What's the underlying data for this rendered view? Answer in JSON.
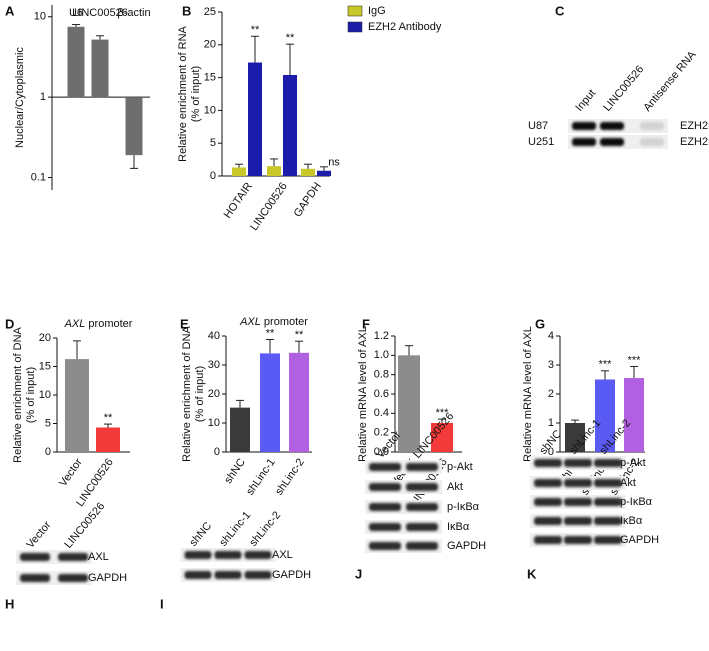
{
  "chart_data": [
    {
      "letter": "A",
      "type": "bar",
      "log": true,
      "ylabel": [
        "Nuclear/Cytoplasmic"
      ],
      "categories": [
        "U6",
        "LINC00526",
        "β-actin"
      ],
      "values": [
        7.5,
        5.2,
        0.19
      ],
      "errors": [
        0.5,
        0.6,
        0.06
      ],
      "colors": [
        "#6e6e6e",
        "#6e6e6e",
        "#6e6e6e"
      ],
      "ylim": [
        0.07,
        14
      ],
      "yticks": [
        0.1,
        1,
        10
      ],
      "labels_on_top": true
    },
    {
      "letter": "B",
      "type": "bar",
      "ylabel": [
        "Relative enrichment of RNA",
        "(% of input)"
      ],
      "categories": [
        "HOTAIR",
        "LINC00526",
        "GAPDH"
      ],
      "series": [
        {
          "name": "IgG",
          "color": "#c8c82a",
          "values": [
            1.3,
            1.5,
            1.1
          ],
          "errors": [
            0.5,
            1.1,
            0.7
          ]
        },
        {
          "name": "EZH2 Antibody",
          "color": "#1c1caa",
          "values": [
            17.3,
            15.4,
            0.8
          ],
          "errors": [
            4,
            4.7,
            0.6
          ]
        }
      ],
      "annotations": [
        "**",
        "**",
        "ns"
      ],
      "ylim": [
        0,
        25
      ],
      "yticks": [
        0,
        5,
        10,
        15,
        20,
        25
      ]
    },
    {
      "letter": "D",
      "type": "bar",
      "title": "AXL promoter",
      "ylabel": [
        "Relative enrichment of DNA",
        "(% of input)"
      ],
      "categories": [
        "Vector",
        "LINC00526"
      ],
      "values": [
        16.3,
        4.3
      ],
      "errors": [
        3.2,
        0.6
      ],
      "colors": [
        "#8c8c8c",
        "#f23a3a"
      ],
      "annotations": [
        null,
        "**"
      ],
      "ylim": [
        0,
        20
      ],
      "yticks": [
        0,
        5,
        10,
        15,
        20
      ]
    },
    {
      "letter": "E",
      "type": "bar",
      "title": "AXL promoter",
      "ylabel": [
        "Relative enrichment of DNA",
        "(% of input)"
      ],
      "categories": [
        "shNC",
        "shLinc-1",
        "shLinc-2"
      ],
      "values": [
        15.3,
        34,
        34.2
      ],
      "errors": [
        2.5,
        4.8,
        4
      ],
      "colors": [
        "#3a3a3a",
        "#5a5af5",
        "#b060e0"
      ],
      "annotations": [
        null,
        "**",
        "**"
      ],
      "ylim": [
        0,
        40
      ],
      "yticks": [
        0,
        10,
        20,
        30,
        40
      ]
    },
    {
      "letter": "F",
      "type": "bar",
      "ylabel": [
        "Relative mRNA level of AXL"
      ],
      "categories": [
        "Vector",
        "LINC00526"
      ],
      "values": [
        1.0,
        0.3
      ],
      "errors": [
        0.1,
        0.04
      ],
      "colors": [
        "#8c8c8c",
        "#f23a3a"
      ],
      "annotations": [
        null,
        "***"
      ],
      "ylim": [
        0,
        1.2
      ],
      "yticks": [
        {
          "value": 0,
          "label": "0.0"
        },
        0.2,
        0.4,
        0.6,
        0.8,
        {
          "value": 1,
          "label": "1.0"
        },
        1.2
      ]
    },
    {
      "letter": "G",
      "type": "bar",
      "ylabel": [
        "Relative mRNA level of AXL"
      ],
      "categories": [
        "shNC",
        "shLinc-1",
        "shLinc-2"
      ],
      "values": [
        1.0,
        2.5,
        2.55
      ],
      "errors": [
        0.1,
        0.3,
        0.4
      ],
      "colors": [
        "#3a3a3a",
        "#5a5af5",
        "#b060e0"
      ],
      "annotations": [
        null,
        "***",
        "***"
      ],
      "ylim": [
        0,
        4
      ],
      "yticks": [
        0,
        1,
        2,
        3,
        4
      ]
    }
  ],
  "blots": [
    {
      "letter": "C",
      "lanes": [
        "Input",
        "LINC00526",
        "Antisense RNA"
      ],
      "row_names": [
        "U87",
        "U251"
      ],
      "rows": [
        "EZH2",
        "EZH2"
      ]
    },
    {
      "letter": "H",
      "lanes": [
        "Vector",
        "LINC00526"
      ],
      "rows": [
        "AXL",
        "GAPDH"
      ]
    },
    {
      "letter": "I",
      "lanes": [
        "shNC",
        "shLinc-1",
        "shLinc-2"
      ],
      "rows": [
        "AXL",
        "GAPDH"
      ]
    },
    {
      "letter": "J",
      "lanes": [
        "Vector",
        "LINC00526"
      ],
      "rows": [
        "p-Akt",
        "Akt",
        "p-IκBα",
        "IκBα",
        "GAPDH"
      ]
    },
    {
      "letter": "K",
      "lanes": [
        "shNC",
        "shLinc-1",
        "shLinc-2"
      ],
      "rows": [
        "p-Akt",
        "Akt",
        "p-IκBα",
        "IκBα",
        "GAPDH"
      ]
    }
  ]
}
